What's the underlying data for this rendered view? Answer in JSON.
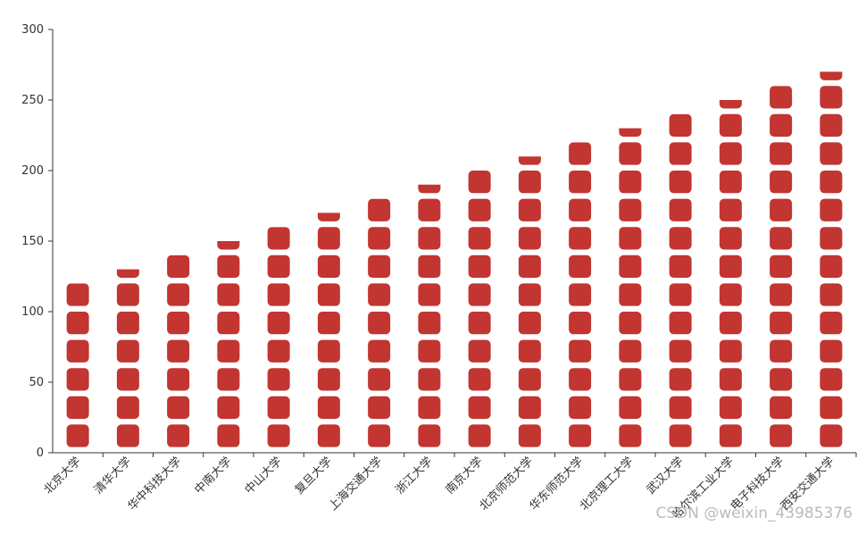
{
  "chart_data": {
    "type": "pictorial-bar",
    "categories": [
      "北京大学",
      "清华大学",
      "华中科技大学",
      "中南大学",
      "中山大学",
      "复旦大学",
      "上海交通大学",
      "浙江大学",
      "南京大学",
      "北京师范大学",
      "华东师范大学",
      "北京理工大学",
      "武汉大学",
      "哈尔滨工业大学",
      "电子科技大学",
      "西安交通大学"
    ],
    "values": [
      120,
      130,
      140,
      150,
      160,
      170,
      180,
      190,
      200,
      210,
      220,
      230,
      240,
      250,
      260,
      270
    ],
    "color": "#c23531",
    "ylim": [
      0,
      300
    ],
    "yticks": [
      0,
      50,
      100,
      150,
      200,
      250,
      300
    ],
    "watermark": "CSDN @weixin_43985376"
  }
}
